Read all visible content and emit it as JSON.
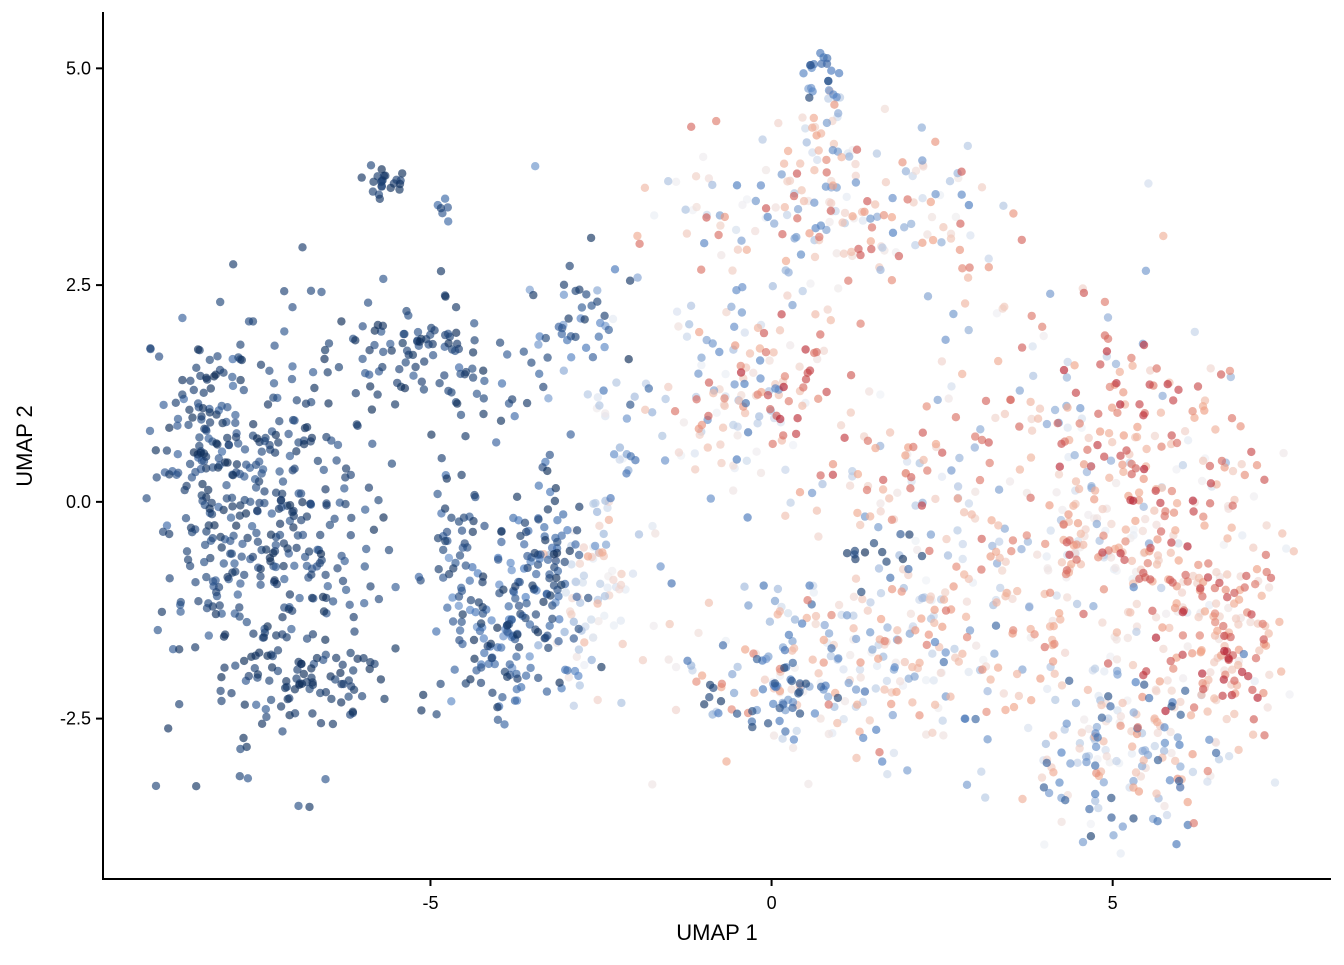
{
  "chart_data": {
    "type": "scatter",
    "xlabel": "UMAP 1",
    "ylabel": "UMAP 2",
    "xlim": [
      -9.8,
      8.2
    ],
    "ylim": [
      -4.35,
      5.65
    ],
    "x_ticks": [
      -5,
      0,
      5
    ],
    "x_tick_labels": [
      "-5",
      "0",
      "5"
    ],
    "y_ticks": [
      5.0,
      2.5,
      0.0,
      -2.5
    ],
    "y_tick_labels": [
      "5.0",
      "2.5",
      "0.0",
      "-2.5"
    ],
    "grid": false,
    "legend": "none",
    "color_scale": {
      "low": "#0b2a55",
      "mid_low": "#4a7bbf",
      "mid": "#eef1f6",
      "mid_high": "#f0a387",
      "high": "#b2182b"
    },
    "point_opacity": 0.65,
    "clusters": [
      {
        "cx": -7.4,
        "cy": -0.3,
        "sx": 0.9,
        "sy": 1.1,
        "n": 420,
        "cmin": 0.0,
        "cmax": 0.15
      },
      {
        "cx": -8.3,
        "cy": 0.9,
        "sx": 0.3,
        "sy": 0.5,
        "n": 60,
        "cmin": 0.0,
        "cmax": 0.2
      },
      {
        "cx": -6.6,
        "cy": -2.1,
        "sx": 0.7,
        "sy": 0.2,
        "n": 60,
        "cmin": 0.0,
        "cmax": 0.1
      },
      {
        "cx": -5.7,
        "cy": 3.7,
        "sx": 0.15,
        "sy": 0.1,
        "n": 22,
        "cmin": 0.0,
        "cmax": 0.1
      },
      {
        "cx": -4.8,
        "cy": 3.4,
        "sx": 0.1,
        "sy": 0.08,
        "n": 6,
        "cmin": 0.05,
        "cmax": 0.2
      },
      {
        "cx": -5.2,
        "cy": 1.9,
        "sx": 0.5,
        "sy": 0.3,
        "n": 60,
        "cmin": 0.0,
        "cmax": 0.15
      },
      {
        "cx": -4.6,
        "cy": -0.3,
        "sx": 0.25,
        "sy": 0.45,
        "n": 35,
        "cmin": 0.0,
        "cmax": 0.2
      },
      {
        "cx": -3.9,
        "cy": -1.5,
        "sx": 0.5,
        "sy": 0.5,
        "n": 150,
        "cmin": 0.0,
        "cmax": 0.3
      },
      {
        "cx": -3.3,
        "cy": -0.5,
        "sx": 0.25,
        "sy": 0.4,
        "n": 60,
        "cmin": 0.0,
        "cmax": 0.25
      },
      {
        "cx": -4.3,
        "cy": 1.4,
        "sx": 0.7,
        "sy": 0.4,
        "n": 45,
        "cmin": 0.0,
        "cmax": 0.2
      },
      {
        "cx": -2.8,
        "cy": 2.1,
        "sx": 0.4,
        "sy": 0.35,
        "n": 40,
        "cmin": 0.0,
        "cmax": 0.35
      },
      {
        "cx": -2.6,
        "cy": -1.1,
        "sx": 0.3,
        "sy": 0.6,
        "n": 70,
        "cmin": 0.35,
        "cmax": 0.75
      },
      {
        "cx": -2.2,
        "cy": 0.6,
        "sx": 0.5,
        "sy": 0.7,
        "n": 40,
        "cmin": 0.2,
        "cmax": 0.55
      },
      {
        "cx": 0.8,
        "cy": 4.95,
        "sx": 0.15,
        "sy": 0.15,
        "n": 20,
        "cmin": 0.05,
        "cmax": 0.3
      },
      {
        "cx": 0.8,
        "cy": 4.4,
        "sx": 0.25,
        "sy": 0.35,
        "n": 25,
        "cmin": 0.3,
        "cmax": 0.8
      },
      {
        "cx": 0.9,
        "cy": 3.3,
        "sx": 1.4,
        "sy": 0.5,
        "n": 190,
        "cmin": 0.25,
        "cmax": 0.9
      },
      {
        "cx": -0.6,
        "cy": 1.6,
        "sx": 0.6,
        "sy": 0.5,
        "n": 60,
        "cmin": 0.25,
        "cmax": 0.9
      },
      {
        "cx": -0.6,
        "cy": 0.8,
        "sx": 0.4,
        "sy": 0.4,
        "n": 40,
        "cmin": 0.2,
        "cmax": 0.7
      },
      {
        "cx": 0.3,
        "cy": 1.5,
        "sx": 0.4,
        "sy": 0.4,
        "n": 35,
        "cmin": 0.55,
        "cmax": 1.0
      },
      {
        "cx": 1.5,
        "cy": 0.3,
        "sx": 0.6,
        "sy": 0.4,
        "n": 45,
        "cmin": 0.3,
        "cmax": 0.95
      },
      {
        "cx": 1.6,
        "cy": -0.6,
        "sx": 0.3,
        "sy": 0.2,
        "n": 12,
        "cmin": 0.0,
        "cmax": 0.15
      },
      {
        "cx": 3.8,
        "cy": 1.1,
        "sx": 1.5,
        "sy": 0.9,
        "n": 120,
        "cmin": 0.3,
        "cmax": 0.9
      },
      {
        "cx": 1.2,
        "cy": -1.9,
        "sx": 1.3,
        "sy": 0.45,
        "n": 200,
        "cmin": 0.15,
        "cmax": 0.85
      },
      {
        "cx": 3.4,
        "cy": -1.2,
        "sx": 1.2,
        "sy": 0.8,
        "n": 180,
        "cmin": 0.3,
        "cmax": 0.85
      },
      {
        "cx": 6.0,
        "cy": -0.8,
        "sx": 0.9,
        "sy": 1.0,
        "n": 230,
        "cmin": 0.45,
        "cmax": 1.0
      },
      {
        "cx": 6.7,
        "cy": -1.7,
        "sx": 0.45,
        "sy": 0.5,
        "n": 70,
        "cmin": 0.55,
        "cmax": 1.0
      },
      {
        "cx": 5.2,
        "cy": -2.9,
        "sx": 0.8,
        "sy": 0.5,
        "n": 140,
        "cmin": 0.1,
        "cmax": 0.8
      },
      {
        "cx": 4.8,
        "cy": -3.7,
        "sx": 0.4,
        "sy": 0.2,
        "n": 12,
        "cmin": 0.0,
        "cmax": 0.6
      },
      {
        "cx": 4.8,
        "cy": -0.2,
        "sx": 0.4,
        "sy": 0.5,
        "n": 50,
        "cmin": 0.4,
        "cmax": 0.95
      },
      {
        "cx": 5.2,
        "cy": 1.0,
        "sx": 0.5,
        "sy": 0.5,
        "n": 50,
        "cmin": 0.6,
        "cmax": 1.0
      },
      {
        "cx": 0.3,
        "cy": -2.2,
        "sx": 0.4,
        "sy": 0.3,
        "n": 40,
        "cmin": 0.05,
        "cmax": 0.35
      },
      {
        "cx": -0.9,
        "cy": -2.2,
        "sx": 0.15,
        "sy": 0.1,
        "n": 5,
        "cmin": 0.0,
        "cmax": 0.1
      }
    ]
  }
}
